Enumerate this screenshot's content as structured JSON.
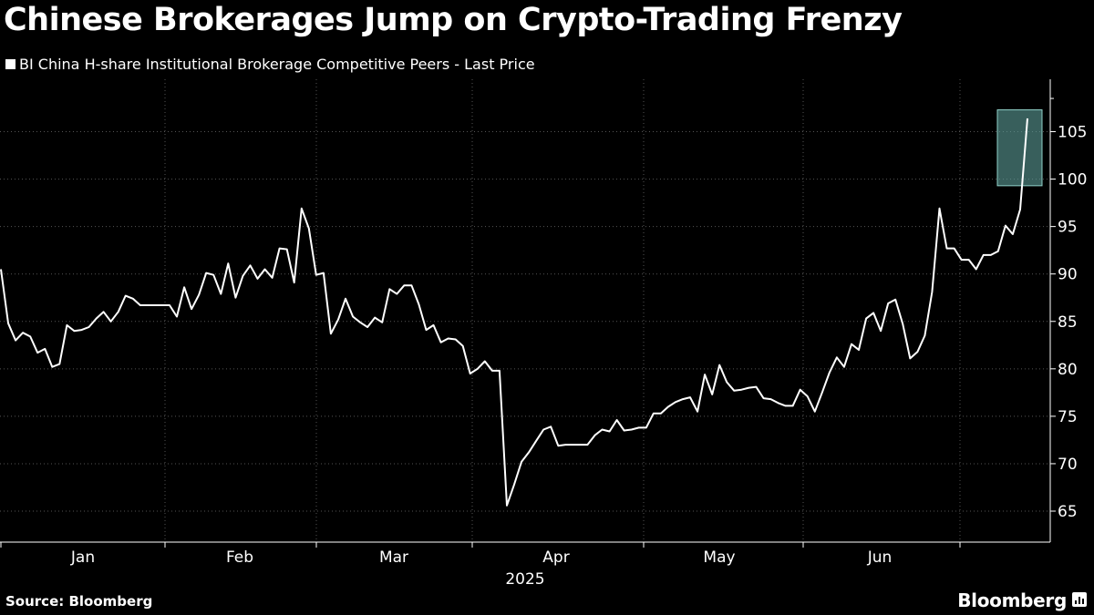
{
  "title": "Chinese Brokerages Jump on Crypto-Trading Frenzy",
  "source": "Source: Bloomberg",
  "brand": "Bloomberg",
  "colors": {
    "background": "#000000",
    "line": "#ffffff",
    "grid": "#555555",
    "highlight": "#5e9e99"
  },
  "chart_data": {
    "type": "line",
    "legend": [
      "BI China H-share Institutional Brokerage Competitive Peers - Last Price"
    ],
    "x_tick_labels": [
      "Jan",
      "Feb",
      "Mar",
      "Apr",
      "May",
      "Jun"
    ],
    "x_year_label": "2025",
    "y_ticks": [
      65,
      70,
      75,
      80,
      85,
      90,
      95,
      100,
      105
    ],
    "ylim": [
      62,
      110
    ],
    "grid": true,
    "highlight": {
      "y_range": [
        99.3,
        107.3
      ]
    },
    "series": [
      {
        "name": "BI China H-share Institutional Brokerage Competitive Peers - Last Price",
        "values": [
          90.5,
          84.8,
          83.0,
          83.8,
          83.4,
          81.7,
          82.1,
          80.2,
          80.5,
          84.6,
          84.0,
          84.1,
          84.4,
          85.3,
          86.0,
          85.0,
          86.0,
          87.7,
          87.4,
          86.7,
          86.7,
          86.7,
          86.7,
          86.7,
          85.5,
          88.6,
          86.3,
          87.8,
          90.1,
          89.9,
          87.9,
          91.1,
          87.5,
          89.8,
          90.9,
          89.5,
          90.5,
          89.6,
          92.7,
          92.6,
          89.1,
          96.9,
          94.8,
          89.9,
          90.1,
          83.7,
          85.2,
          87.4,
          85.5,
          84.9,
          84.4,
          85.4,
          84.9,
          88.4,
          87.9,
          88.8,
          88.8,
          86.8,
          84.1,
          84.6,
          82.8,
          83.2,
          83.1,
          82.4,
          79.5,
          80.0,
          80.8,
          79.8,
          79.8,
          65.6,
          67.8,
          70.2,
          71.2,
          72.4,
          73.6,
          73.9,
          71.9,
          72.0,
          72.0,
          72.0,
          72.0,
          73.0,
          73.6,
          73.4,
          74.6,
          73.5,
          73.6,
          73.8,
          73.8,
          75.3,
          75.3,
          76.0,
          76.5,
          76.8,
          77.0,
          75.5,
          79.4,
          77.3,
          80.4,
          78.6,
          77.7,
          77.8,
          78.0,
          78.1,
          76.9,
          76.8,
          76.4,
          76.1,
          76.1,
          77.8,
          77.1,
          75.5,
          77.5,
          79.6,
          81.2,
          80.2,
          82.6,
          82.0,
          85.3,
          85.9,
          84.0,
          86.9,
          87.3,
          84.7,
          81.1,
          81.8,
          83.5,
          88.1,
          96.9,
          92.7,
          92.7,
          91.5,
          91.5,
          90.5,
          92.0,
          92.0,
          92.4,
          95.1,
          94.2,
          96.8,
          106.4
        ]
      }
    ]
  }
}
